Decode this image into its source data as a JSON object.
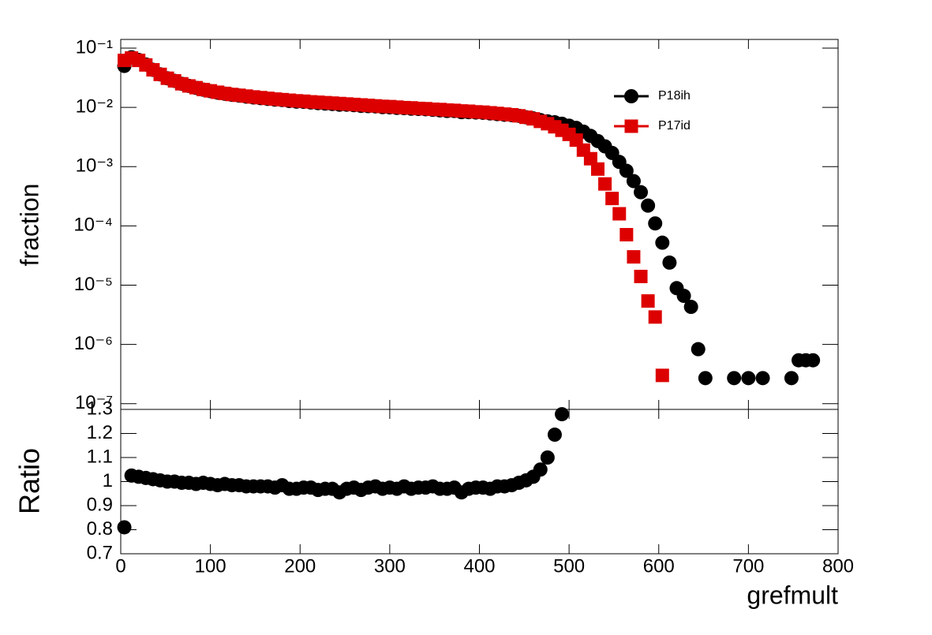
{
  "chart_data": [
    {
      "type": "scatter",
      "ylabel": "fraction",
      "log_y": true,
      "legend": "upper right",
      "xlim": [
        0,
        800
      ],
      "xticks": [
        0,
        100,
        200,
        300,
        400,
        500,
        600,
        700,
        800
      ],
      "ylim": [
        8e-08,
        0.14
      ],
      "yticks": [
        {
          "value": 1e-07,
          "label": "10⁻⁷"
        },
        {
          "value": 1e-06,
          "label": "10⁻⁶"
        },
        {
          "value": 1e-05,
          "label": "10⁻⁵"
        },
        {
          "value": 0.0001,
          "label": "10⁻⁴"
        },
        {
          "value": 0.001,
          "label": "10⁻³"
        },
        {
          "value": 0.01,
          "label": "10⁻²"
        },
        {
          "value": 0.1,
          "label": "10⁻¹"
        }
      ],
      "series": [
        {
          "name": "P18ih",
          "color": "#000000",
          "marker": "circle",
          "x": [
            4,
            12,
            20,
            28,
            36,
            44,
            52,
            60,
            68,
            76,
            84,
            92,
            100,
            108,
            116,
            124,
            132,
            140,
            148,
            156,
            164,
            172,
            180,
            188,
            196,
            204,
            212,
            220,
            228,
            236,
            244,
            252,
            260,
            268,
            276,
            284,
            292,
            300,
            308,
            316,
            324,
            332,
            340,
            348,
            356,
            364,
            372,
            380,
            388,
            396,
            404,
            412,
            420,
            428,
            436,
            444,
            452,
            460,
            468,
            476,
            484,
            492,
            500,
            508,
            516,
            524,
            532,
            540,
            548,
            556,
            564,
            572,
            580,
            588,
            596,
            604,
            612,
            620,
            628,
            636,
            644,
            652,
            684,
            700,
            716,
            748,
            756,
            764,
            772
          ],
          "values": [
            0.05,
            0.07,
            0.063,
            0.053,
            0.043,
            0.036,
            0.031,
            0.028,
            0.025,
            0.023,
            0.0213,
            0.0199,
            0.0188,
            0.0177,
            0.017,
            0.0163,
            0.0158,
            0.0152,
            0.0147,
            0.0143,
            0.0139,
            0.0135,
            0.0133,
            0.0128,
            0.0125,
            0.0124,
            0.0121,
            0.0118,
            0.0116,
            0.0114,
            0.0111,
            0.0111,
            0.0109,
            0.0106,
            0.0105,
            0.0104,
            0.0101,
            0.01,
            0.0098,
            0.0097,
            0.0095,
            0.0094,
            0.0093,
            0.0091,
            0.0089,
            0.0087,
            0.0087,
            0.0083,
            0.0083,
            0.0082,
            0.0081,
            0.0079,
            0.0077,
            0.0075,
            0.0074,
            0.0072,
            0.0068,
            0.0065,
            0.0061,
            0.0058,
            0.0056,
            0.0053,
            0.0049,
            0.0045,
            0.0039,
            0.0033,
            0.0027,
            0.0022,
            0.0017,
            0.0012,
            0.00085,
            0.00057,
            0.00037,
            0.00022,
            0.00011,
            5.2e-05,
            2.4e-05,
            8.9e-06,
            6.6e-06,
            4.3e-06,
            8.3e-07,
            2.7e-07,
            2.7e-07,
            2.7e-07,
            2.7e-07,
            2.7e-07,
            5.4e-07,
            5.4e-07,
            5.4e-07
          ]
        },
        {
          "name": "P17id",
          "color": "#dd0000",
          "marker": "square",
          "x": [
            4,
            12,
            20,
            28,
            36,
            44,
            52,
            60,
            68,
            76,
            84,
            92,
            100,
            108,
            116,
            124,
            132,
            140,
            148,
            156,
            164,
            172,
            180,
            188,
            196,
            204,
            212,
            220,
            228,
            236,
            244,
            252,
            260,
            268,
            276,
            284,
            292,
            300,
            308,
            316,
            324,
            332,
            340,
            348,
            356,
            364,
            372,
            380,
            388,
            396,
            404,
            412,
            420,
            428,
            436,
            444,
            452,
            460,
            468,
            476,
            484,
            492,
            500,
            508,
            516,
            524,
            532,
            540,
            548,
            556,
            564,
            572,
            580,
            588,
            596,
            604
          ],
          "values": [
            0.062,
            0.068,
            0.062,
            0.052,
            0.043,
            0.036,
            0.031,
            0.028,
            0.025,
            0.023,
            0.0215,
            0.02,
            0.019,
            0.018,
            0.0172,
            0.0165,
            0.016,
            0.0155,
            0.015,
            0.0146,
            0.0142,
            0.0138,
            0.0135,
            0.0132,
            0.0129,
            0.0127,
            0.0124,
            0.0122,
            0.012,
            0.0118,
            0.0116,
            0.0114,
            0.0112,
            0.011,
            0.0108,
            0.0106,
            0.0104,
            0.0103,
            0.0101,
            0.0099,
            0.0098,
            0.0096,
            0.0095,
            0.0093,
            0.0092,
            0.009,
            0.0089,
            0.0087,
            0.0086,
            0.0084,
            0.0083,
            0.0081,
            0.0079,
            0.0077,
            0.0075,
            0.0072,
            0.0068,
            0.0064,
            0.0058,
            0.0053,
            0.0047,
            0.0041,
            0.0035,
            0.0028,
            0.0019,
            0.00136,
            0.00091,
            0.00051,
            0.00029,
            0.00016,
            7.1e-05,
            3e-05,
            1.4e-05,
            5.4e-06,
            2.9e-06,
            3e-07
          ]
        }
      ]
    },
    {
      "type": "scatter",
      "ylabel": "Ratio",
      "xlabel": "grefmult",
      "xlim": [
        0,
        800
      ],
      "xticks": [
        0,
        100,
        200,
        300,
        400,
        500,
        600,
        700,
        800
      ],
      "ylim": [
        0.7,
        1.3
      ],
      "yticks": [
        0.7,
        0.8,
        0.9,
        1,
        1.1,
        1.2,
        1.3
      ],
      "series": [
        {
          "color": "#000000",
          "marker": "circle",
          "x": [
            4,
            12,
            20,
            28,
            36,
            44,
            52,
            60,
            68,
            76,
            84,
            92,
            100,
            108,
            116,
            124,
            132,
            140,
            148,
            156,
            164,
            172,
            180,
            188,
            196,
            204,
            212,
            220,
            228,
            236,
            244,
            252,
            260,
            268,
            276,
            284,
            292,
            300,
            308,
            316,
            324,
            332,
            340,
            348,
            356,
            364,
            372,
            380,
            388,
            396,
            404,
            412,
            420,
            428,
            436,
            444,
            452,
            460,
            468,
            476,
            484,
            492
          ],
          "values": [
            0.81,
            1.025,
            1.02,
            1.015,
            1.01,
            1.005,
            1.0,
            1.0,
            0.995,
            0.995,
            0.99,
            0.995,
            0.99,
            0.985,
            0.99,
            0.985,
            0.985,
            0.98,
            0.98,
            0.98,
            0.98,
            0.975,
            0.985,
            0.97,
            0.97,
            0.975,
            0.975,
            0.965,
            0.97,
            0.97,
            0.955,
            0.97,
            0.975,
            0.965,
            0.975,
            0.98,
            0.97,
            0.975,
            0.97,
            0.98,
            0.97,
            0.975,
            0.975,
            0.98,
            0.97,
            0.97,
            0.975,
            0.955,
            0.97,
            0.975,
            0.975,
            0.97,
            0.98,
            0.98,
            0.985,
            0.995,
            1.005,
            1.02,
            1.05,
            1.1,
            1.195,
            1.28
          ]
        }
      ]
    }
  ]
}
